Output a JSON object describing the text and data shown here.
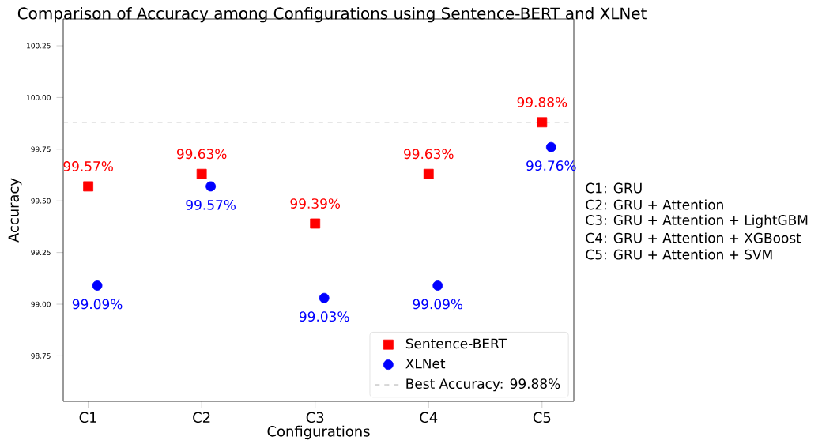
{
  "chart_data": {
    "type": "scatter",
    "title": "Comparison of Accuracy among Configurations using Sentence-BERT and XLNet",
    "xlabel": "Configurations",
    "ylabel": "Accuracy",
    "categories": [
      "C1",
      "C2",
      "C3",
      "C4",
      "C5"
    ],
    "series": [
      {
        "name": "Sentence-BERT",
        "color": "#ff0000",
        "marker": "square",
        "values": [
          99.57,
          99.63,
          99.39,
          99.63,
          99.88
        ],
        "value_labels": [
          "99.57%",
          "99.63%",
          "99.39%",
          "99.63%",
          "99.88%"
        ]
      },
      {
        "name": "XLNet",
        "color": "#0000ff",
        "marker": "circle",
        "values": [
          99.09,
          99.57,
          99.03,
          99.09,
          99.76
        ],
        "value_labels": [
          "99.09%",
          "99.57%",
          "99.03%",
          "99.09%",
          "99.76%"
        ]
      }
    ],
    "ylim": [
      98.53,
      100.38
    ],
    "yticks": [
      {
        "value": 98.75,
        "label": "98.75"
      },
      {
        "value": 99.0,
        "label": "99.00"
      },
      99.25,
      {
        "value": 99.5,
        "label": "99.50"
      },
      99.75,
      {
        "value": 100.0,
        "label": "100.00"
      },
      100.25
    ],
    "ref_lines": [
      {
        "axis": "y",
        "value": 99.88,
        "label": "Best Accuracy: 99.88%",
        "color": "#999999",
        "line_style": "dashed"
      }
    ],
    "legend": "bottom right",
    "annotations": [
      "C1: GRU",
      "C2: GRU + Attention",
      "C3: GRU + Attention + LightGBM",
      "C4: GRU + Attention + XGBoost",
      "C5: GRU + Attention + SVM"
    ]
  }
}
